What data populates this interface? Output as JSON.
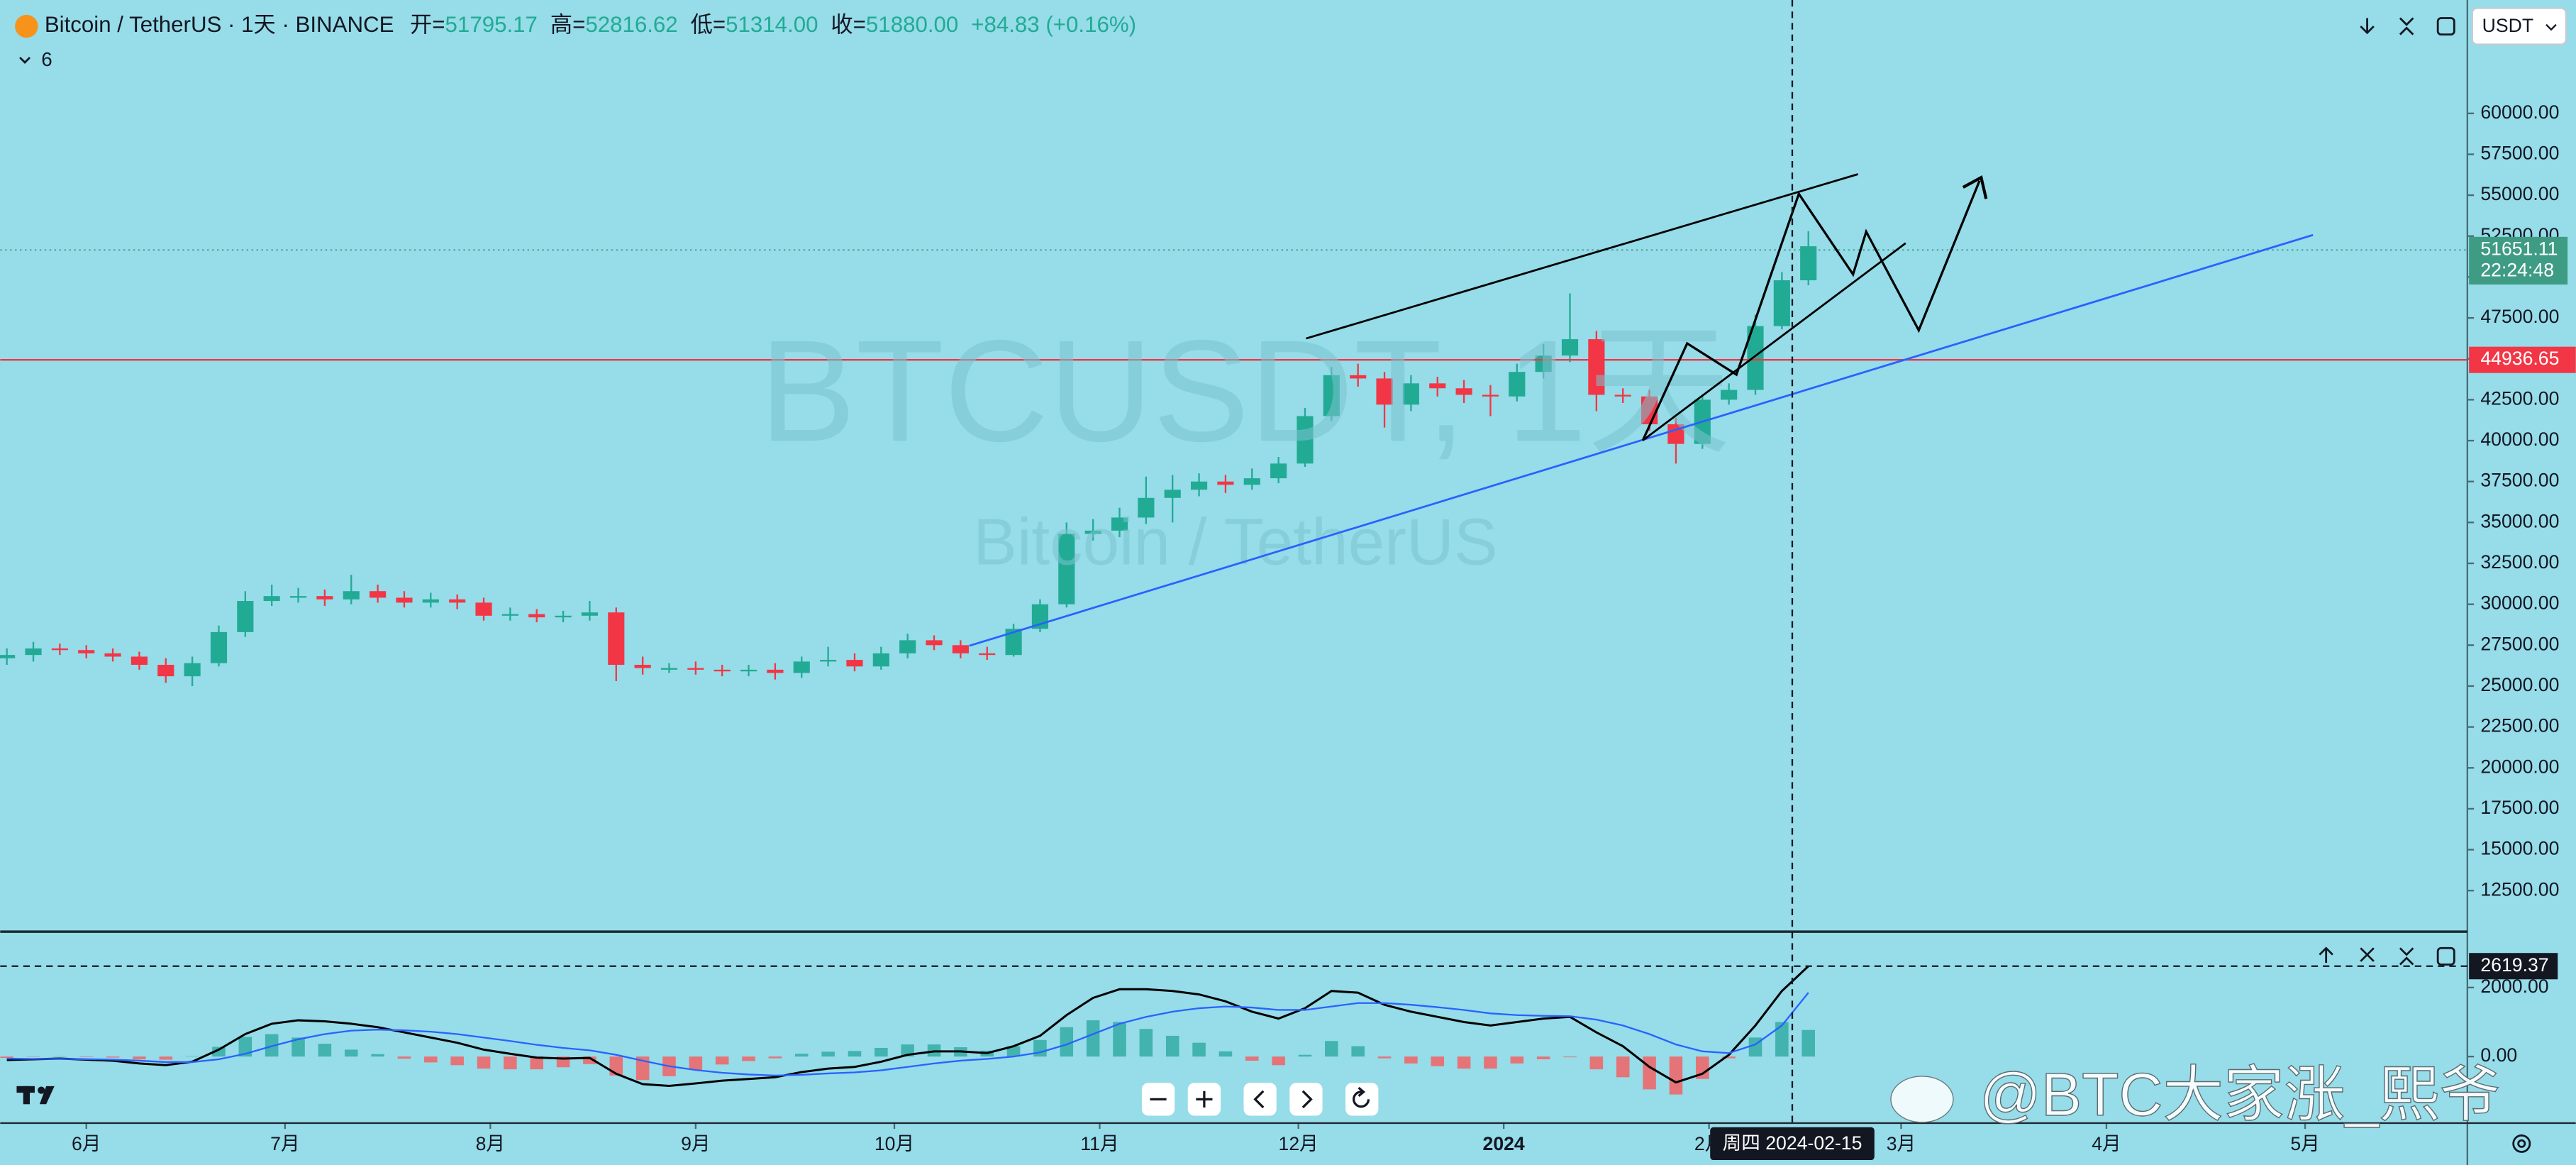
{
  "header": {
    "symbol": "Bitcoin / TetherUS · 1天 · BINANCE",
    "open_label": "开=",
    "open": "51795.17",
    "high_label": "高=",
    "high": "52816.62",
    "low_label": "低=",
    "low": "51314.00",
    "close_label": "收=",
    "close": "51880.00",
    "change": "+84.83 (+0.16%)",
    "indicators_count": "6",
    "currency": "USDT"
  },
  "watermark_symbol": "BTCUSDT, 1天",
  "watermark_name": "Bitcoin / TetherUS",
  "crosshair_label": "周四 2024-02-15",
  "social_watermark": "@BTC大家涨_熙爷",
  "chart_data": [
    {
      "type": "candlestick",
      "x": [
        -12,
        -8,
        -4,
        0,
        4,
        8,
        12,
        16,
        20,
        24,
        28,
        32,
        36,
        40,
        44,
        48,
        52,
        56,
        60,
        64,
        68,
        72,
        76,
        80,
        84,
        88,
        92,
        96,
        100,
        104,
        108,
        112,
        116,
        120,
        124,
        128,
        132,
        136,
        140,
        144,
        148,
        152,
        156,
        160,
        164,
        168,
        172,
        176,
        180,
        184,
        188,
        192,
        196,
        200,
        204,
        208,
        212,
        216,
        220,
        224,
        228,
        232,
        236,
        240,
        244,
        248,
        252,
        256,
        260
      ],
      "open": [
        26700,
        26900,
        27300,
        27200,
        27000,
        26800,
        26300,
        25600,
        26400,
        28300,
        30200,
        30500,
        30500,
        30300,
        30800,
        30400,
        30100,
        30300,
        30100,
        29300,
        29400,
        29200,
        29300,
        29500,
        26300,
        26100,
        26100,
        26000,
        25900,
        26000,
        25800,
        26500,
        26600,
        26200,
        27000,
        27800,
        27500,
        27000,
        26900,
        28500,
        30000,
        34300,
        34500,
        35300,
        36500,
        37000,
        37500,
        37300,
        37700,
        38600,
        41500,
        44000,
        43800,
        42200,
        43500,
        43200,
        42800,
        42700,
        44200,
        45200,
        46200,
        42800,
        42700,
        41000,
        39800,
        42500,
        43100,
        47000,
        49800
      ],
      "high": [
        27300,
        27700,
        27600,
        27500,
        27300,
        27100,
        26700,
        26800,
        28700,
        30800,
        31200,
        31000,
        30900,
        31800,
        31200,
        30800,
        30700,
        30600,
        30400,
        29800,
        29700,
        29600,
        30200,
        29800,
        26800,
        26400,
        26500,
        26300,
        26300,
        26400,
        26800,
        27400,
        27000,
        27400,
        28200,
        28100,
        27800,
        27400,
        28800,
        30300,
        35000,
        35200,
        35900,
        37800,
        37900,
        38000,
        37900,
        38300,
        39000,
        42000,
        44500,
        44700,
        44200,
        44000,
        43900,
        43700,
        43400,
        44700,
        45900,
        49000,
        46700,
        43200,
        43100,
        41400,
        42800,
        43500,
        47700,
        50300,
        52800
      ],
      "low": [
        26300,
        26500,
        26900,
        26700,
        26500,
        26000,
        25200,
        25000,
        26200,
        28000,
        29900,
        30100,
        29900,
        30000,
        30100,
        29800,
        29800,
        29700,
        29000,
        29000,
        28900,
        28900,
        29000,
        25300,
        25700,
        25800,
        25700,
        25600,
        25600,
        25400,
        25500,
        26200,
        25900,
        26000,
        26700,
        27200,
        26700,
        26600,
        26800,
        28300,
        29800,
        33900,
        34100,
        34900,
        35000,
        36600,
        36800,
        37000,
        37400,
        38400,
        41200,
        43300,
        40800,
        41800,
        42700,
        42300,
        41500,
        42400,
        43800,
        44800,
        41800,
        42300,
        40600,
        38600,
        39500,
        42200,
        42800,
        46800,
        49500
      ],
      "close": [
        26900,
        27300,
        27200,
        27000,
        26800,
        26300,
        25600,
        26400,
        28300,
        30200,
        30500,
        30500,
        30300,
        30800,
        30400,
        30100,
        30300,
        30100,
        29300,
        29400,
        29200,
        29300,
        29500,
        26300,
        26100,
        26100,
        26000,
        25900,
        26000,
        25800,
        26500,
        26600,
        26200,
        27000,
        27800,
        27500,
        27000,
        26900,
        28500,
        30000,
        34300,
        34500,
        35300,
        36500,
        37000,
        37500,
        37300,
        37700,
        38600,
        41500,
        44000,
        43800,
        42200,
        43500,
        43200,
        42800,
        42700,
        44200,
        45200,
        46200,
        42800,
        42700,
        41000,
        39800,
        42500,
        43100,
        47000,
        49800,
        51880
      ],
      "up_color": "#22ab94",
      "down_color": "#f23645",
      "xlim": [
        -13,
        359
      ],
      "xticks": [
        {
          "value": 0,
          "label": "6月"
        },
        {
          "value": 30,
          "label": "7月"
        },
        {
          "value": 61,
          "label": "8月"
        },
        {
          "value": 92,
          "label": "9月"
        },
        {
          "value": 122,
          "label": "10月"
        },
        {
          "value": 153,
          "label": "11月"
        },
        {
          "value": 183,
          "label": "12月"
        },
        {
          "value": 214,
          "label": "2024"
        },
        {
          "value": 245,
          "label": "2月"
        },
        {
          "value": 274,
          "label": "3月"
        },
        {
          "value": 305,
          "label": "4月"
        },
        {
          "value": 335,
          "label": "5月"
        }
      ],
      "ylim": [
        10090,
        66930
      ],
      "yticks": [
        {
          "value": 12500,
          "label": "12500.00"
        },
        {
          "value": 15000,
          "label": "15000.00"
        },
        {
          "value": 17500,
          "label": "17500.00"
        },
        {
          "value": 20000,
          "label": "20000.00"
        },
        {
          "value": 22500,
          "label": "22500.00"
        },
        {
          "value": 25000,
          "label": "25000.00"
        },
        {
          "value": 27500,
          "label": "27500.00"
        },
        {
          "value": 30000,
          "label": "30000.00"
        },
        {
          "value": 32500,
          "label": "32500.00"
        },
        {
          "value": 35000,
          "label": "35000.00"
        },
        {
          "value": 37500,
          "label": "37500.00"
        },
        {
          "value": 40000,
          "label": "40000.00"
        },
        {
          "value": 42500,
          "label": "42500.00"
        },
        {
          "value": 45000,
          "label": "45000.00"
        },
        {
          "value": 47500,
          "label": "47500.00"
        },
        {
          "value": 50000,
          "label": "50000.00"
        },
        {
          "value": 52500,
          "label": "52500.00"
        },
        {
          "value": 55000,
          "label": "55000.00"
        },
        {
          "value": 57500,
          "label": "57500.00"
        },
        {
          "value": 60000,
          "label": "60000.00"
        }
      ],
      "hline": 44936.65,
      "hline_color": "#f23645",
      "last_price": 51651.11,
      "last_price_color": "#3f9c84",
      "countdown": "22:24:48"
    },
    {
      "type": "line",
      "series": [
        {
          "color": "#000000",
          "values": [
            -100,
            -80,
            -60,
            -90,
            -120,
            -200,
            -250,
            -150,
            200,
            650,
            950,
            1050,
            1020,
            950,
            850,
            700,
            550,
            400,
            200,
            80,
            -30,
            -60,
            -40,
            -500,
            -800,
            -850,
            -780,
            -700,
            -650,
            -600,
            -450,
            -350,
            -300,
            -150,
            50,
            150,
            150,
            100,
            300,
            600,
            1200,
            1700,
            1950,
            1950,
            1900,
            1800,
            1600,
            1300,
            1100,
            1400,
            1900,
            1850,
            1500,
            1300,
            1150,
            1000,
            900,
            1000,
            1100,
            1150,
            700,
            300,
            -300,
            -750,
            -500,
            50,
            900,
            1900,
            2619.37
          ]
        },
        {
          "color": "#2962ff",
          "values": [
            -60,
            -70,
            -70,
            -75,
            -90,
            -120,
            -160,
            -160,
            -80,
            80,
            300,
            500,
            650,
            750,
            780,
            760,
            720,
            650,
            550,
            450,
            340,
            250,
            180,
            50,
            -120,
            -280,
            -390,
            -470,
            -520,
            -550,
            -530,
            -490,
            -460,
            -400,
            -300,
            -200,
            -120,
            -70,
            0,
            120,
            350,
            650,
            950,
            1150,
            1300,
            1400,
            1450,
            1420,
            1350,
            1350,
            1450,
            1550,
            1550,
            1500,
            1430,
            1350,
            1250,
            1200,
            1180,
            1170,
            1070,
            900,
            650,
            350,
            150,
            100,
            350,
            900,
            1850
          ]
        }
      ],
      "histogram": {
        "pos_color": "#26a69a",
        "neg_color": "#ff5252",
        "values": [
          -40,
          -10,
          10,
          -15,
          -30,
          -80,
          -90,
          10,
          280,
          570,
          650,
          550,
          370,
          200,
          70,
          -60,
          -170,
          -250,
          -350,
          -370,
          -370,
          -310,
          -220,
          -550,
          -680,
          -570,
          -390,
          -230,
          -130,
          -50,
          80,
          140,
          160,
          250,
          350,
          350,
          270,
          170,
          300,
          480,
          850,
          1050,
          1000,
          800,
          600,
          400,
          150,
          -120,
          -250,
          50,
          450,
          300,
          -50,
          -200,
          -280,
          -350,
          -350,
          -200,
          -80,
          -20,
          -370,
          -600,
          -950,
          -1100,
          -650,
          -50,
          550,
          1000,
          769.37
        ]
      },
      "ylim": [
        -1905,
        3571
      ],
      "yticks": [
        {
          "value": 0,
          "label": "0.00"
        },
        {
          "value": 2000,
          "label": "2000.00"
        }
      ]
    }
  ]
}
